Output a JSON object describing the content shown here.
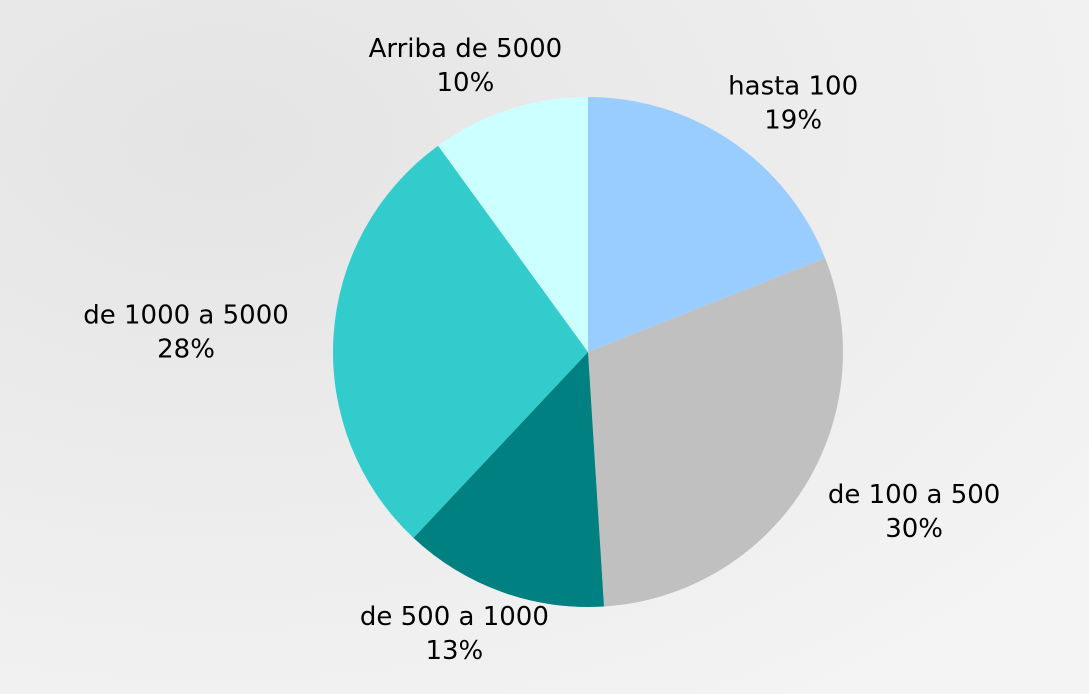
{
  "chart_data": {
    "type": "pie",
    "categories": [
      "hasta 100",
      "de 100 a 500",
      "de 500 a 1000",
      "de 1000 a 5000",
      "Arriba de 5000"
    ],
    "values": [
      19,
      30,
      13,
      28,
      10
    ],
    "value_labels": [
      "19%",
      "30%",
      "13%",
      "28%",
      "10%"
    ],
    "colors": [
      "#99ccff",
      "#c0c0c0",
      "#008080",
      "#33cccc",
      "#ccffff"
    ]
  }
}
